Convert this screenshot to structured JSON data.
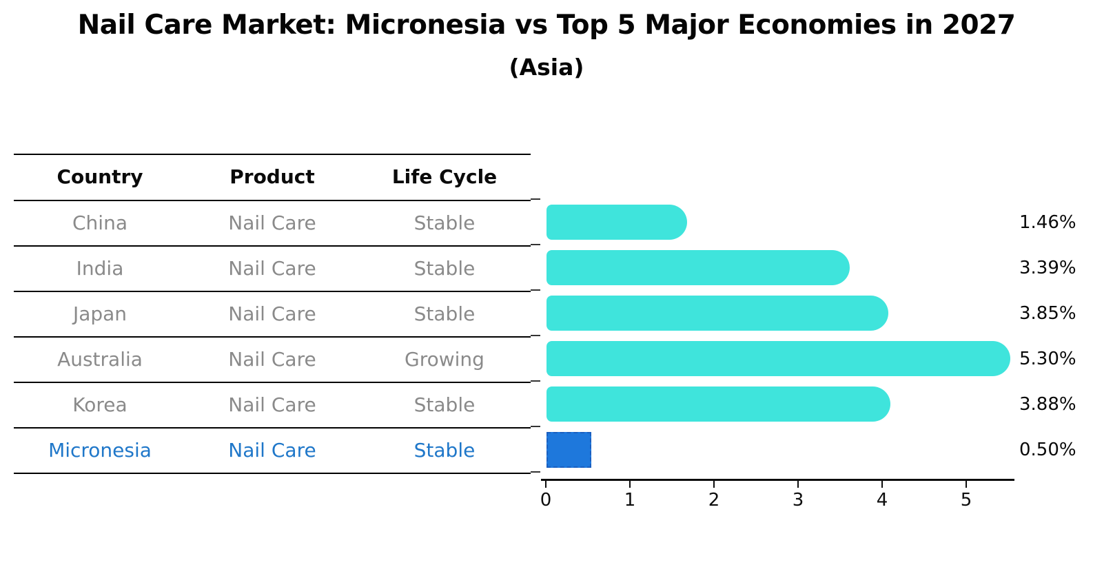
{
  "title": "Nail Care Market: Micronesia vs Top 5 Major Economies in 2027",
  "subtitle": "(Asia)",
  "table": {
    "headers": [
      "Country",
      "Product",
      "Life Cycle"
    ],
    "rows": [
      {
        "country": "China",
        "product": "Nail Care",
        "life_cycle": "Stable"
      },
      {
        "country": "India",
        "product": "Nail Care",
        "life_cycle": "Stable"
      },
      {
        "country": "Japan",
        "product": "Nail Care",
        "life_cycle": "Stable"
      },
      {
        "country": "Australia",
        "product": "Nail Care",
        "life_cycle": "Growing"
      },
      {
        "country": "Korea",
        "product": "Nail Care",
        "life_cycle": "Stable"
      },
      {
        "country": "Micronesia",
        "product": "Nail Care",
        "life_cycle": "Stable"
      }
    ],
    "highlight_row": "Micronesia"
  },
  "chart_data": {
    "type": "bar",
    "orientation": "horizontal",
    "title": "Nail Care Market: Micronesia vs Top 5 Major Economies in 2027",
    "subtitle": "(Asia)",
    "categories": [
      "China",
      "India",
      "Japan",
      "Australia",
      "Korea",
      "Micronesia"
    ],
    "values": [
      1.46,
      3.39,
      3.85,
      5.3,
      3.88,
      0.5
    ],
    "value_labels": [
      "1.46%",
      "3.39%",
      "3.85%",
      "5.30%",
      "3.88%",
      "0.50%"
    ],
    "x_ticks": [
      "0",
      "1",
      "2",
      "3",
      "4",
      "5"
    ],
    "xlim": [
      0,
      5.6
    ],
    "grid": false,
    "legend": "none",
    "bar_color": "#3FE4DC",
    "highlight_index": 5,
    "highlight_bar_color": "#1E78DC",
    "highlight_border_color": "#1A5FC0",
    "highlight_text_color": "#1F77C9"
  }
}
